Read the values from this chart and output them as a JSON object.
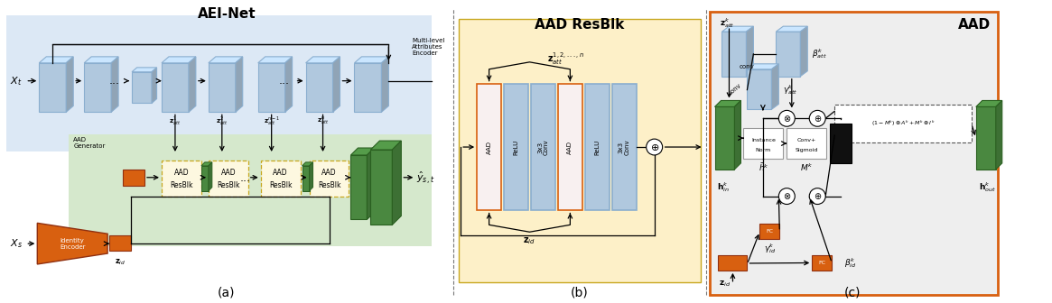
{
  "title_a": "AEI-Net",
  "title_b": "AAD ResBlk",
  "title_c": "AAD",
  "label_a": "(a)",
  "label_b": "(b)",
  "label_c": "(c)",
  "bg_blue": "#dce8f5",
  "bg_green": "#d5e8cc",
  "bg_yellow": "#fdf0c8",
  "bg_gray": "#eeeeee",
  "color_orange": "#d86010",
  "color_blue_block": "#8aaecf",
  "color_blue_block_light": "#b0c8de",
  "color_green_block": "#3a7d44",
  "color_dashed_gold": "#c8a820"
}
